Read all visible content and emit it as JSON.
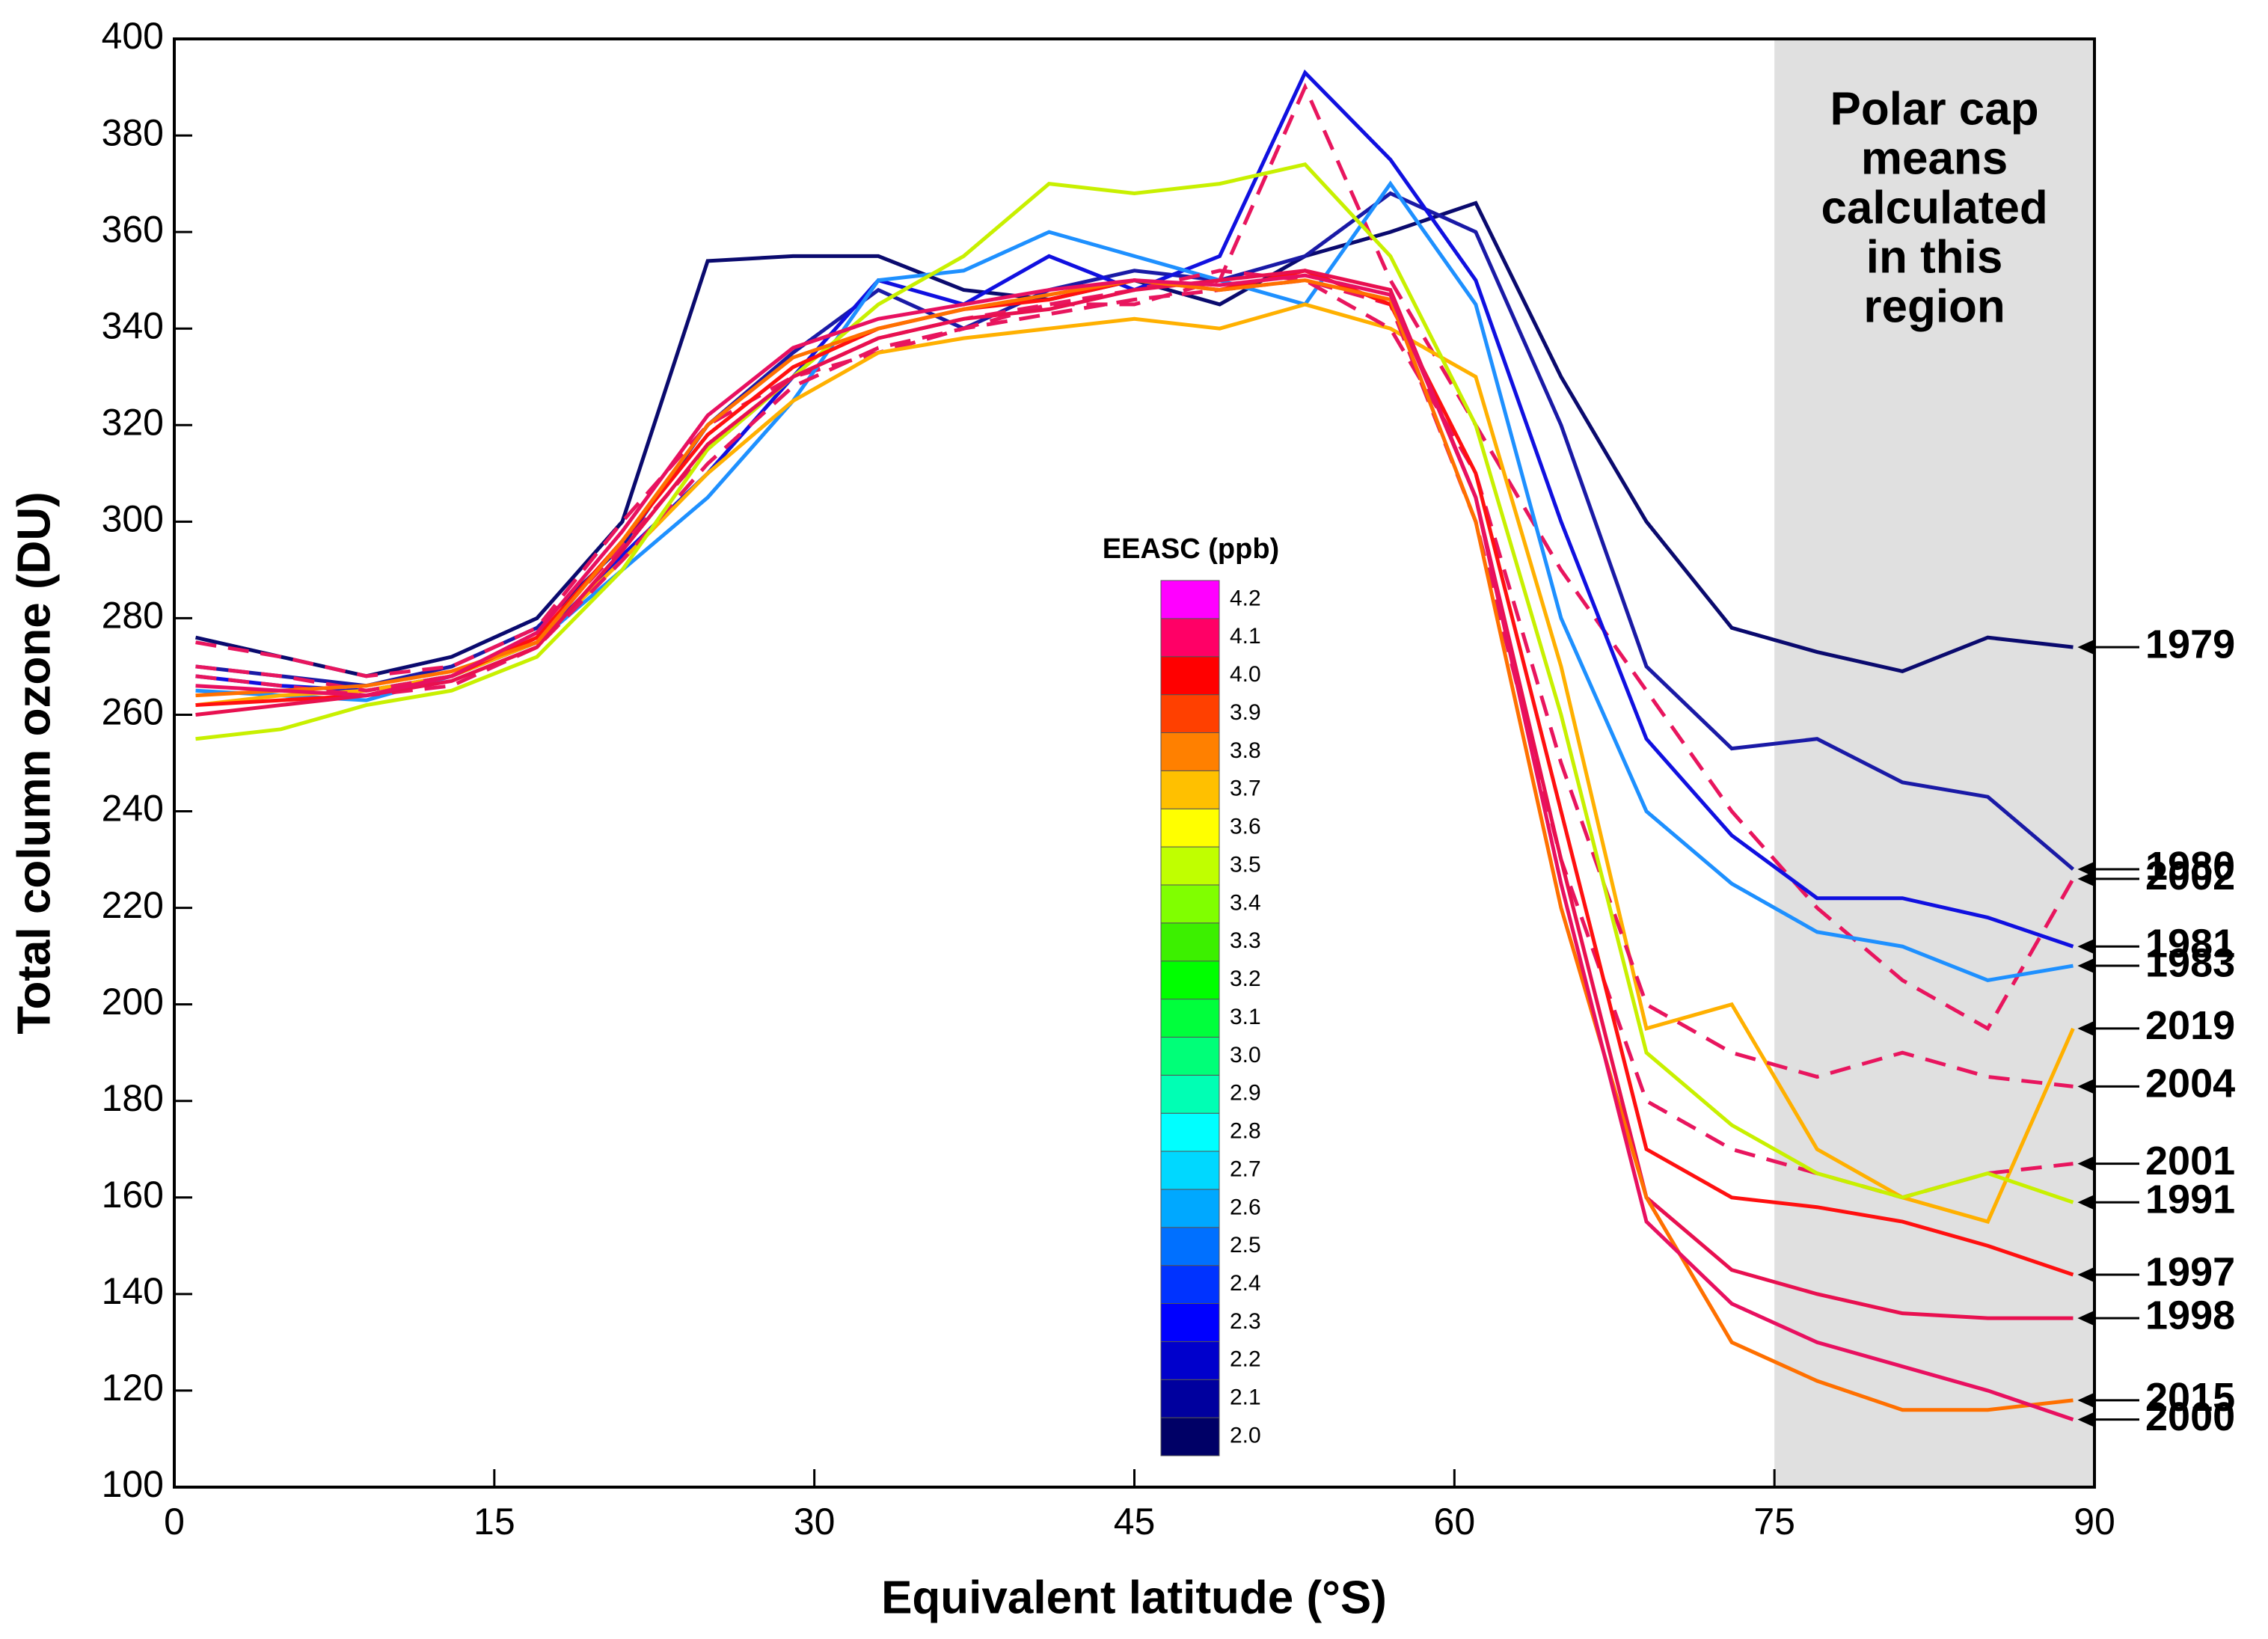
{
  "chart_data": {
    "type": "line",
    "x_label": "Equivalent latitude (°S)",
    "y_label": "Total column ozone (DU)",
    "xlim": [
      0,
      90
    ],
    "xticks": [
      0,
      15,
      30,
      45,
      60,
      75,
      90
    ],
    "ylim": [
      100,
      400
    ],
    "yticks": [
      100,
      120,
      140,
      160,
      180,
      200,
      220,
      240,
      260,
      280,
      300,
      320,
      340,
      360,
      380,
      400
    ],
    "shade_xlim": [
      75,
      90
    ],
    "shade_color": "#e0e0e0",
    "shade_note": [
      "Polar cap",
      "means",
      "calculated",
      "in this",
      "region"
    ],
    "colorbar": {
      "title": "EEASC (ppb)",
      "ticks": [
        {
          "value": 2,
          "label": "2.0"
        },
        2.1,
        2.2,
        2.3,
        2.4,
        2.5,
        2.6,
        2.7,
        2.8,
        2.9,
        {
          "value": 3,
          "label": "3.0"
        },
        3.1,
        3.2,
        3.3,
        3.4,
        3.5,
        3.6,
        3.7,
        3.8,
        3.9,
        {
          "value": 4,
          "label": "4.0"
        },
        4.1,
        4.2
      ],
      "colors": [
        "#000066",
        "#00009e",
        "#0000cc",
        "#0000ff",
        "#0033ff",
        "#0070ff",
        "#00a8ff",
        "#00d8ff",
        "#00ffff",
        "#00ffb4",
        "#00ff78",
        "#00ff3c",
        "#00ff00",
        "#3cf000",
        "#80ff00",
        "#c0ff00",
        "#ffff00",
        "#ffc000",
        "#ff8000",
        "#ff4000",
        "#ff0000",
        "#ff0066",
        "#ff00ff"
      ]
    },
    "x": [
      1,
      5,
      9,
      13,
      17,
      21,
      25,
      29,
      33,
      37,
      41,
      45,
      49,
      53,
      57,
      61,
      65,
      69,
      73,
      77,
      81,
      85,
      89
    ],
    "series": [
      {
        "name": "1979",
        "color": "#0a0a6e",
        "dashed": false,
        "values": [
          276,
          272,
          268,
          272,
          280,
          300,
          354,
          355,
          355,
          348,
          346,
          350,
          345,
          355,
          360,
          366,
          330,
          300,
          278,
          273,
          269,
          276,
          274
        ]
      },
      {
        "name": "1980",
        "color": "#1a1aa6",
        "dashed": false,
        "values": [
          270,
          268,
          266,
          270,
          278,
          295,
          320,
          335,
          348,
          340,
          348,
          352,
          350,
          355,
          368,
          360,
          320,
          270,
          253,
          255,
          246,
          243,
          228
        ]
      },
      {
        "name": "2002",
        "color": "#e8155e",
        "dashed": true,
        "values": [
          275,
          272,
          268,
          270,
          278,
          300,
          320,
          330,
          335,
          340,
          345,
          345,
          350,
          390,
          350,
          320,
          290,
          265,
          240,
          220,
          205,
          195,
          226
        ]
      },
      {
        "name": "1981",
        "color": "#1010e0",
        "dashed": false,
        "values": [
          268,
          266,
          265,
          268,
          275,
          293,
          310,
          330,
          350,
          345,
          355,
          348,
          355,
          393,
          375,
          350,
          300,
          255,
          235,
          222,
          222,
          218,
          212
        ]
      },
      {
        "name": "1983",
        "color": "#1e90ff",
        "dashed": false,
        "values": [
          265,
          264,
          263,
          268,
          275,
          290,
          305,
          325,
          350,
          352,
          360,
          355,
          350,
          345,
          370,
          345,
          280,
          240,
          225,
          215,
          212,
          205,
          208
        ]
      },
      {
        "name": "2019",
        "color": "#ffb000",
        "dashed": false,
        "values": [
          262,
          264,
          265,
          268,
          275,
          292,
          310,
          325,
          335,
          338,
          340,
          342,
          340,
          345,
          340,
          330,
          270,
          195,
          200,
          170,
          160,
          155,
          195
        ]
      },
      {
        "name": "2004",
        "color": "#e8155e",
        "dashed": true,
        "values": [
          270,
          268,
          265,
          268,
          276,
          295,
          315,
          330,
          338,
          342,
          345,
          348,
          352,
          350,
          340,
          310,
          250,
          200,
          190,
          185,
          190,
          185,
          183
        ]
      },
      {
        "name": "2001",
        "color": "#e8155e",
        "dashed": true,
        "values": [
          268,
          266,
          264,
          266,
          274,
          292,
          312,
          328,
          336,
          340,
          343,
          346,
          348,
          350,
          345,
          300,
          230,
          180,
          170,
          165,
          160,
          165,
          167
        ]
      },
      {
        "name": "1991",
        "color": "#c8f000",
        "dashed": false,
        "values": [
          255,
          257,
          262,
          265,
          272,
          290,
          315,
          330,
          345,
          355,
          370,
          368,
          370,
          374,
          355,
          320,
          260,
          190,
          175,
          165,
          160,
          165,
          159
        ]
      },
      {
        "name": "1997",
        "color": "#ff1010",
        "dashed": false,
        "values": [
          262,
          263,
          264,
          268,
          276,
          296,
          318,
          332,
          340,
          344,
          346,
          350,
          348,
          352,
          345,
          310,
          240,
          170,
          160,
          158,
          155,
          150,
          144
        ]
      },
      {
        "name": "1998",
        "color": "#e81050",
        "dashed": false,
        "values": [
          260,
          262,
          264,
          267,
          274,
          294,
          316,
          330,
          338,
          342,
          344,
          348,
          350,
          352,
          348,
          305,
          230,
          160,
          145,
          140,
          136,
          135,
          135
        ]
      },
      {
        "name": "2015",
        "color": "#ff7000",
        "dashed": false,
        "values": [
          264,
          265,
          266,
          269,
          275,
          296,
          320,
          334,
          340,
          344,
          347,
          350,
          348,
          350,
          346,
          300,
          220,
          160,
          130,
          122,
          116,
          116,
          118
        ]
      },
      {
        "name": "2000",
        "color": "#e81060",
        "dashed": false,
        "values": [
          266,
          265,
          264,
          268,
          277,
          298,
          322,
          336,
          342,
          345,
          348,
          350,
          349,
          351,
          347,
          305,
          225,
          155,
          138,
          130,
          125,
          120,
          114
        ]
      }
    ]
  }
}
